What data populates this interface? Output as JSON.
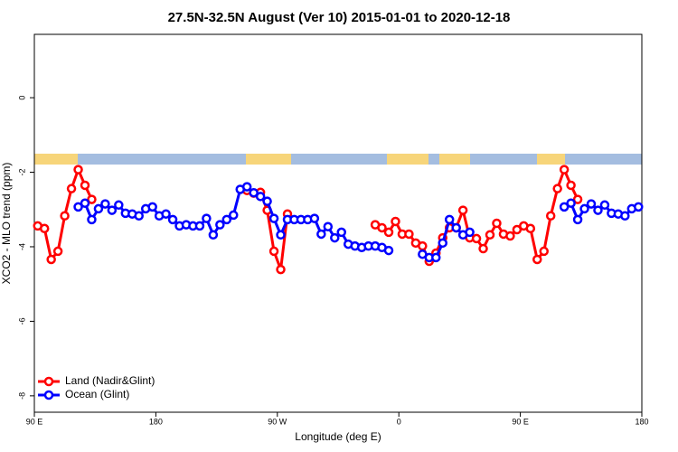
{
  "chart_data": {
    "type": "line",
    "title": "27.5N-32.5N August (Ver 10)   2015-01-01 to 2020-12-18",
    "x_label": "Longitude (deg E)",
    "y_label": "XCO2 - MLO trend (ppm)",
    "xlim": [
      90,
      540
    ],
    "ylim": [
      -8.44,
      1.7
    ],
    "xticks": [
      {
        "value": 90,
        "label": "90 E"
      },
      180,
      {
        "value": 270,
        "label": "90 W"
      },
      {
        "value": 360,
        "label": "0"
      },
      {
        "value": 450,
        "label": "90 E"
      },
      {
        "value": 540,
        "label": "180"
      }
    ],
    "yticks": [
      0,
      -2,
      -4,
      -6,
      -8
    ],
    "legend": "bottom-left",
    "x": [
      92.5,
      97.5,
      102.5,
      107.5,
      112.5,
      117.5,
      122.5,
      127.5,
      132.5,
      137.5,
      142.5,
      147.5,
      152.5,
      157.5,
      162.5,
      167.5,
      172.5,
      177.5,
      182.5,
      187.5,
      192.5,
      197.5,
      202.5,
      207.5,
      212.5,
      217.5,
      222.5,
      227.5,
      232.5,
      237.5,
      242.5,
      247.5,
      252.5,
      257.5,
      262.5,
      267.5,
      272.5,
      277.5,
      282.5,
      287.5,
      292.5,
      297.5,
      302.5,
      307.5,
      312.5,
      317.5,
      322.5,
      327.5,
      332.5,
      337.5,
      342.5,
      347.5,
      352.5,
      357.5,
      362.5,
      367.5,
      372.5,
      377.5,
      382.5,
      387.5,
      392.5,
      397.5,
      402.5,
      407.5,
      412.5,
      417.5,
      422.5,
      427.5,
      432.5,
      437.5,
      442.5,
      447.5,
      452.5,
      457.5,
      462.5,
      467.5,
      472.5,
      477.5,
      482.5,
      487.5,
      492.5,
      497.5,
      502.5,
      507.5,
      512.5,
      517.5,
      522.5,
      527.5,
      532.5,
      537.5
    ],
    "series": [
      {
        "name": "Land (Nadir&Glint)",
        "color": "#ff0000",
        "values": [
          -3.44,
          -3.51,
          -4.34,
          -4.12,
          -3.17,
          -2.44,
          -1.93,
          -2.35,
          -2.73,
          null,
          null,
          null,
          null,
          null,
          null,
          null,
          null,
          null,
          null,
          null,
          null,
          null,
          null,
          null,
          null,
          null,
          null,
          null,
          null,
          null,
          null,
          -2.49,
          -2.56,
          -2.54,
          -3.02,
          -4.12,
          -4.61,
          -3.12,
          null,
          null,
          null,
          null,
          null,
          null,
          null,
          null,
          null,
          null,
          null,
          null,
          -3.41,
          -3.49,
          -3.61,
          -3.32,
          -3.66,
          -3.66,
          -3.9,
          -3.98,
          -4.39,
          -4.17,
          -3.76,
          -3.49,
          -3.49,
          -3.02,
          -3.76,
          -3.78,
          -4.05,
          -3.68,
          -3.37,
          -3.66,
          -3.71,
          -3.54,
          -3.44,
          -3.51,
          -4.34,
          -4.12,
          -3.17,
          -2.44,
          -1.93,
          -2.35,
          -2.73,
          null,
          null,
          null,
          null,
          null,
          null,
          null,
          null,
          null
        ]
      },
      {
        "name": "Ocean (Glint)",
        "color": "#0000ff",
        "values": [
          null,
          null,
          null,
          null,
          null,
          null,
          -2.93,
          -2.83,
          -3.27,
          -2.98,
          -2.85,
          -3.02,
          -2.88,
          -3.1,
          -3.12,
          -3.17,
          -2.98,
          -2.93,
          -3.17,
          -3.12,
          -3.27,
          -3.44,
          -3.41,
          -3.44,
          -3.44,
          -3.24,
          -3.68,
          -3.41,
          -3.27,
          -3.15,
          -2.46,
          -2.39,
          -2.55,
          -2.65,
          -2.78,
          -3.24,
          -3.68,
          -3.27,
          -3.27,
          -3.27,
          -3.27,
          -3.24,
          -3.66,
          -3.46,
          -3.76,
          -3.61,
          -3.93,
          -3.98,
          -4.02,
          -3.98,
          -3.98,
          -4.02,
          -4.1,
          null,
          null,
          null,
          null,
          -4.2,
          -4.29,
          -4.29,
          -3.9,
          -3.27,
          -3.49,
          -3.68,
          -3.61,
          null,
          null,
          null,
          null,
          null,
          null,
          null,
          null,
          null,
          null,
          null,
          null,
          null,
          -2.93,
          -2.83,
          -3.27,
          -2.98,
          -2.85,
          -3.02,
          -2.88,
          -3.1,
          -3.12,
          -3.17,
          -2.98,
          -2.93
        ]
      }
    ]
  }
}
